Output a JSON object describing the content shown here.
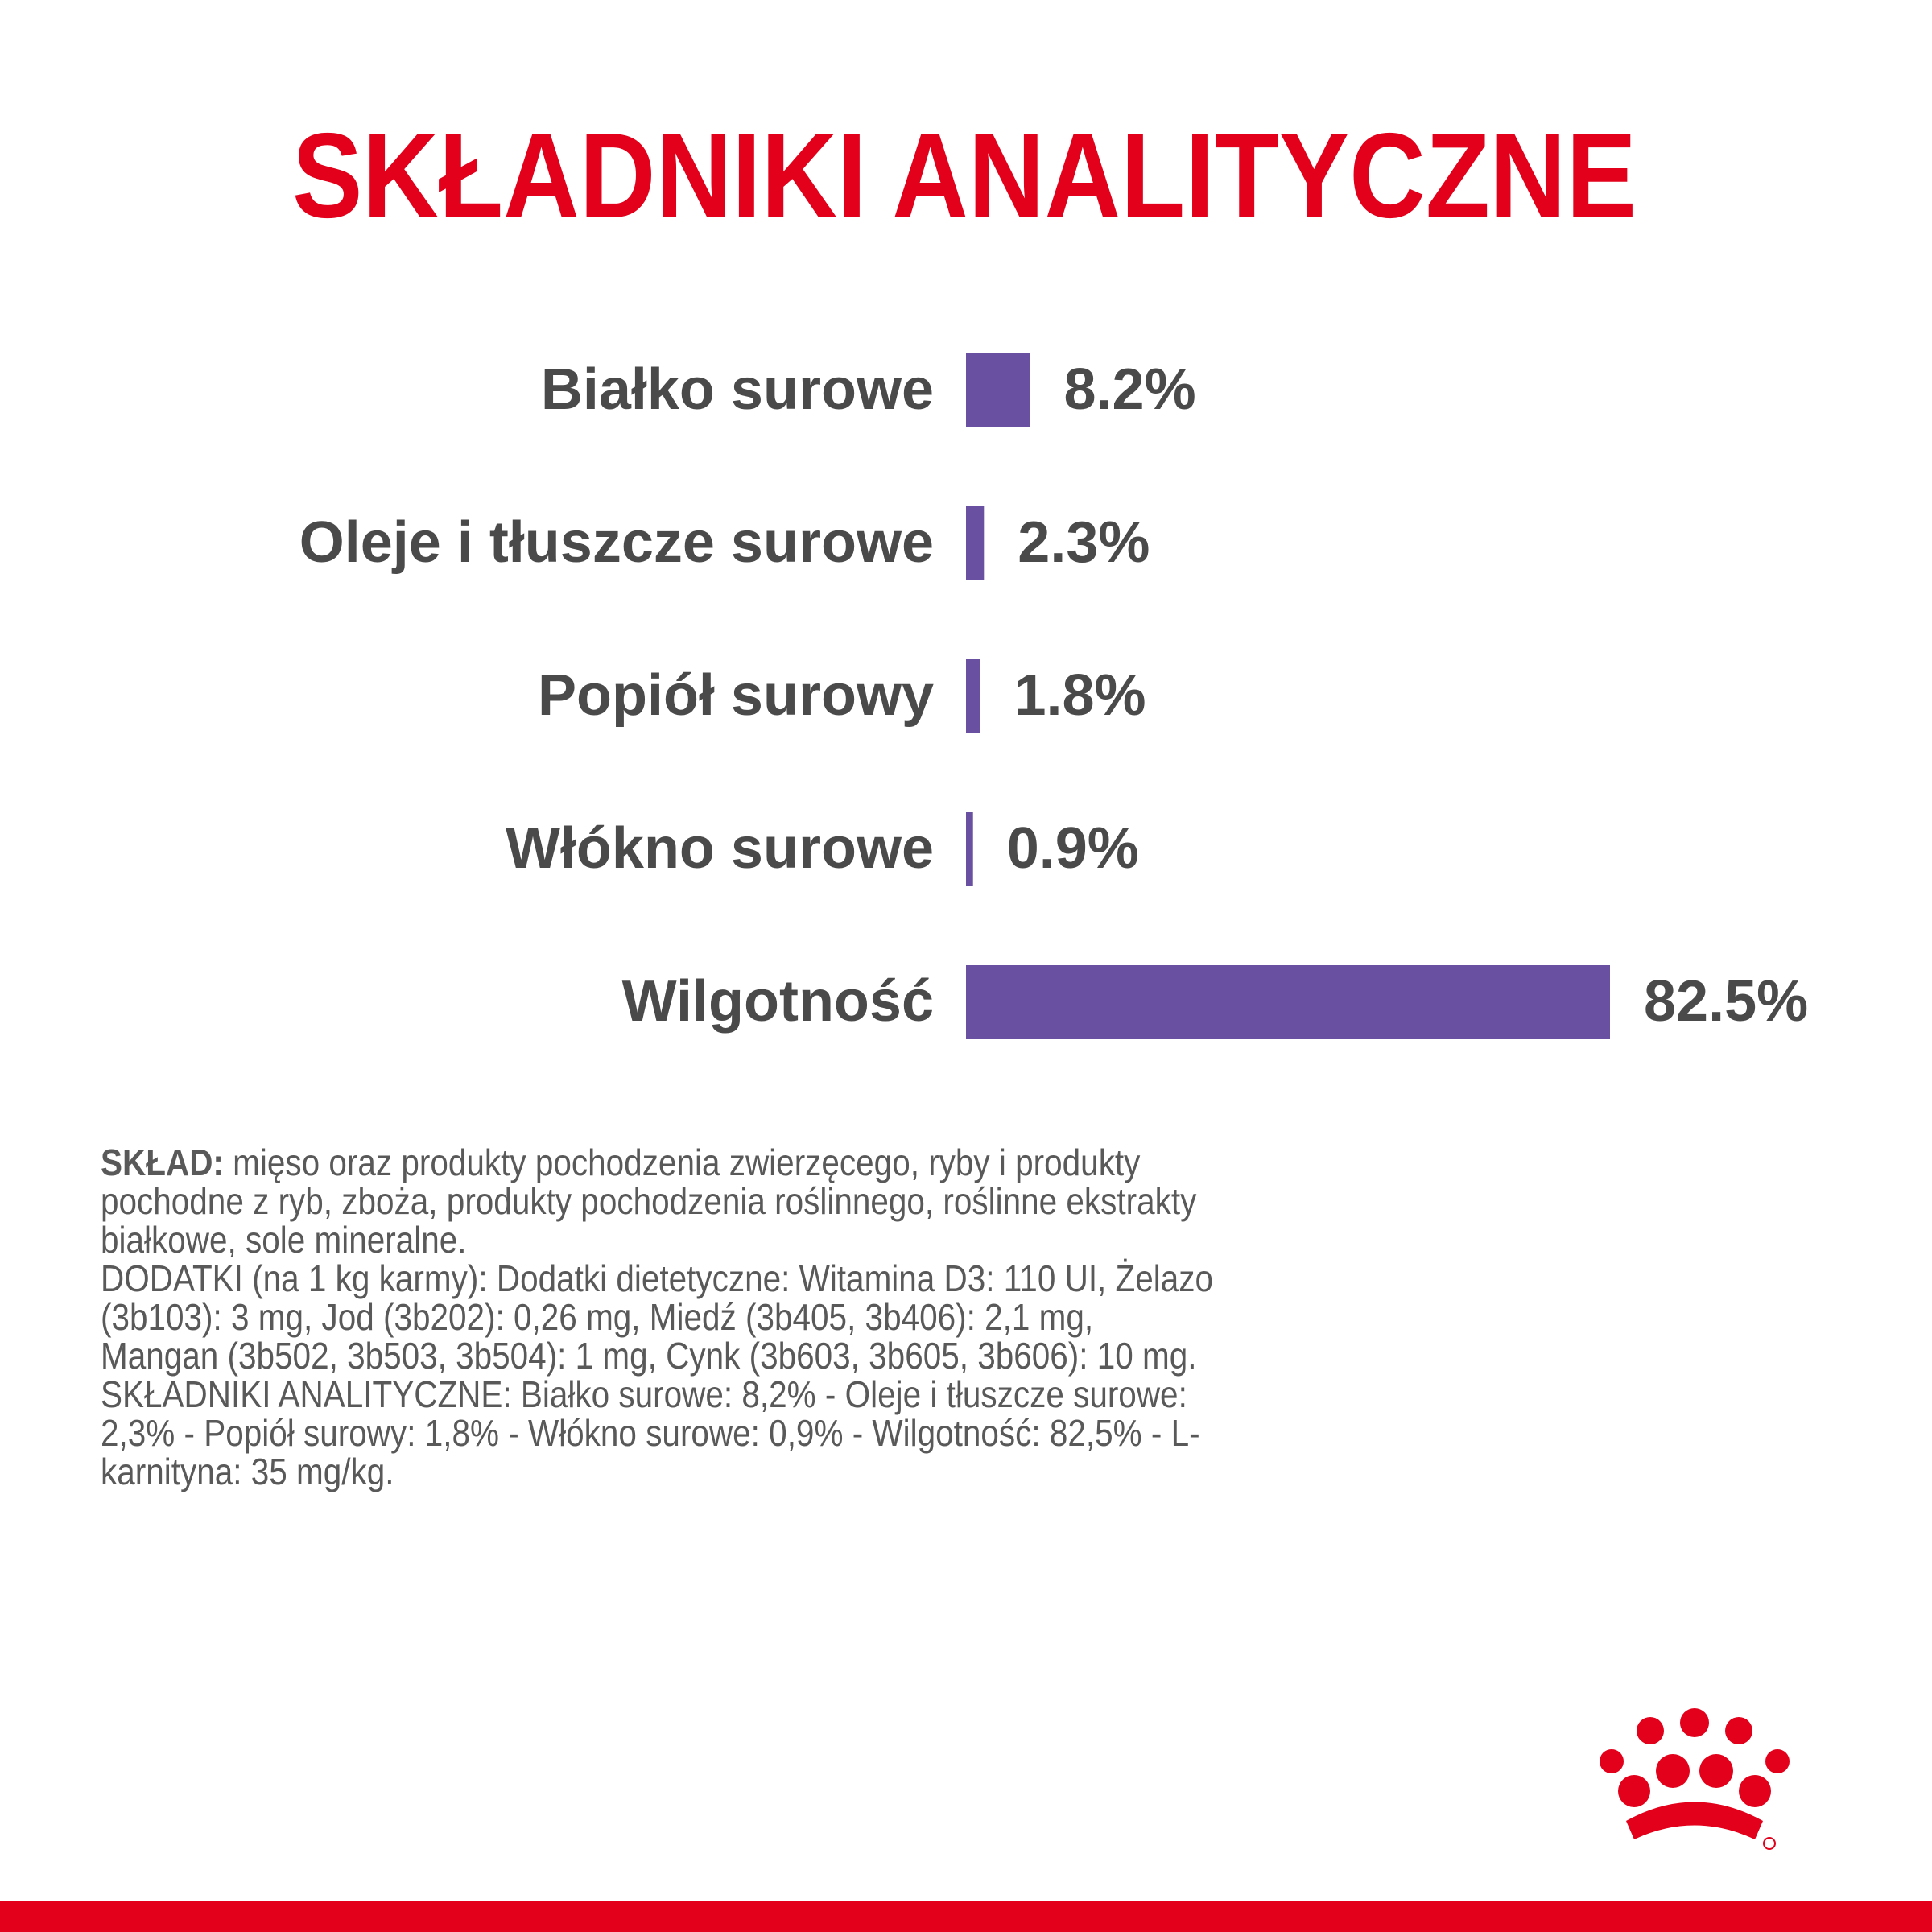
{
  "chart_data": {
    "type": "hbar",
    "title": "SKŁADNIKI ANALITYCZNE",
    "categories": [
      "Białko surowe",
      "Oleje i tłuszcze surowe",
      "Popiół surowy",
      "Włókno surowe",
      "Wilgotność"
    ],
    "values": [
      8.2,
      2.3,
      1.8,
      0.9,
      82.5
    ],
    "value_labels": [
      "8.2%",
      "2.3%",
      "1.8%",
      "0.9%",
      "82.5%"
    ],
    "color": "#6a50a0"
  },
  "composition": {
    "label": "SKŁAD:",
    "text": "mięso oraz produkty pochodzenia zwierzęcego, ryby i produkty pochodne z ryb, zboża, produkty pochodzenia roślinnego, roślinne ekstrakty białkowe, sole mineralne.",
    "additives": "DODATKI (na 1 kg karmy): Dodatki dietetyczne: Witamina D3: 110 UI, Żelazo (3b103): 3 mg, Jod (3b202): 0,26 mg, Miedź (3b405, 3b406): 2,1 mg, Mangan (3b502, 3b503, 3b504): 1 mg, Cynk (3b603, 3b605, 3b606): 10 mg.",
    "analytical": "SKŁADNIKI ANALITYCZNE: Białko surowe: 8,2% - Oleje i tłuszcze surowe: 2,3% - Popiół surowy: 1,8% - Włókno surowe: 0,9% - Wilgotność: 82,5% - L-karnityna: 35 mg/kg."
  }
}
